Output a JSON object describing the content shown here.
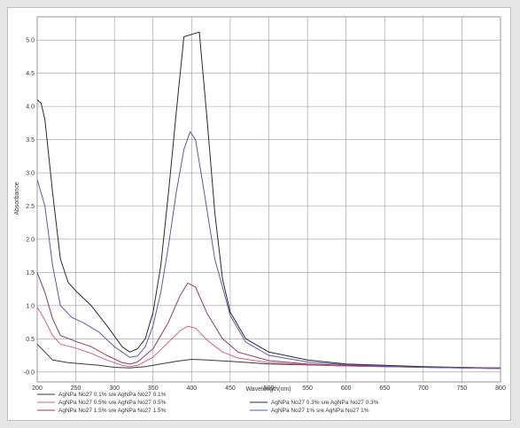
{
  "chart_data": {
    "type": "line",
    "xlabel": "Wavelength(nm)",
    "ylabel": "Absorbance",
    "xlim": [
      200,
      800
    ],
    "ylim": [
      -0.15,
      5.35
    ],
    "grid": true,
    "legend_position": "bottom",
    "x_ticks": [
      "200",
      "250",
      "300",
      "350",
      "400",
      "450",
      "500",
      "550",
      "600",
      "650",
      "700",
      "750",
      "800"
    ],
    "y_ticks": [
      "-0.0",
      "0.5",
      "1.0",
      "1.5",
      "2.0",
      "2.5",
      "3.0",
      "3.5",
      "4.0",
      "4.5",
      "5.0"
    ],
    "y_tick_values": [
      0,
      0.5,
      1.0,
      1.5,
      2.0,
      2.5,
      3.0,
      3.5,
      4.0,
      4.5,
      5.0
    ],
    "series": [
      {
        "name": "AgNPa No27 0.1% sre AgNPa No27 0.1%",
        "color": "#3a3a3a",
        "points": [
          [
            200,
            0.42
          ],
          [
            210,
            0.3
          ],
          [
            220,
            0.18
          ],
          [
            240,
            0.14
          ],
          [
            260,
            0.12
          ],
          [
            280,
            0.1
          ],
          [
            300,
            0.07
          ],
          [
            320,
            0.06
          ],
          [
            340,
            0.08
          ],
          [
            360,
            0.12
          ],
          [
            380,
            0.16
          ],
          [
            400,
            0.19
          ],
          [
            420,
            0.18
          ],
          [
            450,
            0.16
          ],
          [
            500,
            0.12
          ],
          [
            600,
            0.09
          ],
          [
            700,
            0.07
          ],
          [
            800,
            0.05
          ]
        ]
      },
      {
        "name": "AgNPa No27 0.5% sre AgNPa No27 0.5%",
        "color": "#d9607a",
        "points": [
          [
            200,
            0.98
          ],
          [
            210,
            0.78
          ],
          [
            220,
            0.55
          ],
          [
            230,
            0.42
          ],
          [
            250,
            0.36
          ],
          [
            270,
            0.28
          ],
          [
            290,
            0.18
          ],
          [
            310,
            0.1
          ],
          [
            320,
            0.08
          ],
          [
            330,
            0.1
          ],
          [
            350,
            0.22
          ],
          [
            370,
            0.45
          ],
          [
            385,
            0.62
          ],
          [
            395,
            0.69
          ],
          [
            405,
            0.66
          ],
          [
            420,
            0.48
          ],
          [
            440,
            0.3
          ],
          [
            460,
            0.21
          ],
          [
            500,
            0.14
          ],
          [
            550,
            0.11
          ],
          [
            600,
            0.09
          ],
          [
            700,
            0.07
          ],
          [
            800,
            0.05
          ]
        ]
      },
      {
        "name": "AgNPa No27 1.5% sre AgNPa No27 1.5%",
        "color": "#8a3a6a",
        "points": [
          [
            200,
            1.5
          ],
          [
            210,
            1.2
          ],
          [
            220,
            0.8
          ],
          [
            230,
            0.55
          ],
          [
            250,
            0.46
          ],
          [
            270,
            0.38
          ],
          [
            290,
            0.25
          ],
          [
            310,
            0.14
          ],
          [
            320,
            0.12
          ],
          [
            330,
            0.15
          ],
          [
            350,
            0.35
          ],
          [
            370,
            0.75
          ],
          [
            385,
            1.15
          ],
          [
            395,
            1.34
          ],
          [
            405,
            1.28
          ],
          [
            420,
            0.88
          ],
          [
            440,
            0.5
          ],
          [
            460,
            0.3
          ],
          [
            500,
            0.17
          ],
          [
            550,
            0.12
          ],
          [
            600,
            0.1
          ],
          [
            700,
            0.07
          ],
          [
            800,
            0.06
          ]
        ]
      },
      {
        "name": "AgNPa No27 0.3% sre AgNPa No27 0.3%",
        "color": "#2a2a2a",
        "points": [
          [
            200,
            4.1
          ],
          [
            205,
            4.05
          ],
          [
            210,
            3.8
          ],
          [
            220,
            2.7
          ],
          [
            230,
            1.7
          ],
          [
            240,
            1.35
          ],
          [
            250,
            1.22
          ],
          [
            270,
            1.0
          ],
          [
            290,
            0.7
          ],
          [
            310,
            0.38
          ],
          [
            320,
            0.3
          ],
          [
            330,
            0.35
          ],
          [
            340,
            0.5
          ],
          [
            350,
            0.9
          ],
          [
            360,
            1.6
          ],
          [
            370,
            2.7
          ],
          [
            380,
            3.9
          ],
          [
            390,
            5.05
          ],
          [
            410,
            5.12
          ],
          [
            420,
            3.8
          ],
          [
            430,
            2.4
          ],
          [
            440,
            1.4
          ],
          [
            450,
            0.9
          ],
          [
            470,
            0.5
          ],
          [
            500,
            0.3
          ],
          [
            550,
            0.18
          ],
          [
            600,
            0.12
          ],
          [
            700,
            0.08
          ],
          [
            800,
            0.06
          ]
        ]
      },
      {
        "name": "AgNPa No27 1% sre AgNPa No27 1%",
        "color": "#5a5ab0",
        "points": [
          [
            200,
            2.9
          ],
          [
            210,
            2.5
          ],
          [
            220,
            1.6
          ],
          [
            230,
            1.0
          ],
          [
            245,
            0.82
          ],
          [
            260,
            0.74
          ],
          [
            280,
            0.6
          ],
          [
            300,
            0.38
          ],
          [
            320,
            0.22
          ],
          [
            330,
            0.24
          ],
          [
            340,
            0.38
          ],
          [
            350,
            0.7
          ],
          [
            360,
            1.2
          ],
          [
            370,
            1.9
          ],
          [
            380,
            2.7
          ],
          [
            390,
            3.35
          ],
          [
            398,
            3.62
          ],
          [
            405,
            3.5
          ],
          [
            415,
            2.8
          ],
          [
            430,
            1.7
          ],
          [
            450,
            0.85
          ],
          [
            470,
            0.45
          ],
          [
            500,
            0.25
          ],
          [
            550,
            0.15
          ],
          [
            600,
            0.11
          ],
          [
            700,
            0.07
          ],
          [
            800,
            0.06
          ]
        ]
      }
    ]
  }
}
